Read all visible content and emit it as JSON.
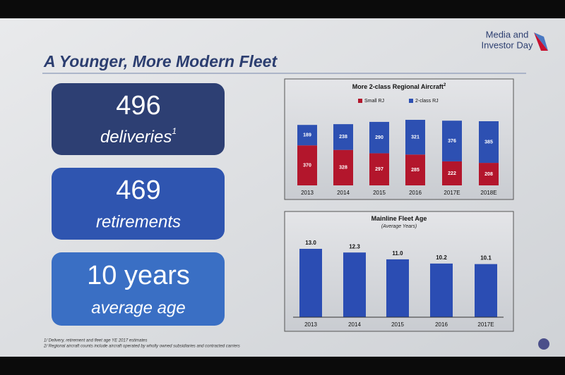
{
  "header": {
    "brand": [
      "Media and",
      "Investor Day"
    ],
    "title": "A Younger, More Modern Fleet"
  },
  "stats": [
    {
      "value": "496",
      "label": "deliveries",
      "note": "1"
    },
    {
      "value": "469",
      "label": "retirements"
    },
    {
      "value": "10 years",
      "label": "average age"
    }
  ],
  "footnotes": [
    "1/ Delivery, retirement and fleet age YE 2017 estimates",
    "2/ Regional aircraft counts include aircraft operated by wholly owned subsidiaries and contracted carriers"
  ],
  "chart_data": [
    {
      "type": "bar",
      "stacked": true,
      "title": "More 2-class Regional Aircraft",
      "title_note": "2",
      "categories": [
        "2013",
        "2014",
        "2015",
        "2016",
        "2017E",
        "2018E"
      ],
      "series": [
        {
          "name": "Small RJ",
          "color": "#b3162c",
          "values": [
            370,
            328,
            297,
            285,
            222,
            208
          ]
        },
        {
          "name": "2-class RJ",
          "color": "#2d50b2",
          "values": [
            189,
            238,
            290,
            321,
            376,
            385
          ]
        }
      ]
    },
    {
      "type": "bar",
      "title": "Mainline Fleet Age",
      "subtitle": "(Average Years)",
      "categories": [
        "2013",
        "2014",
        "2015",
        "2016",
        "2017E"
      ],
      "values": [
        13.0,
        12.3,
        11.0,
        10.2,
        10.1
      ],
      "value_labels": [
        "13.0",
        "12.3",
        "11.0",
        "10.2",
        "10.1"
      ],
      "color": "#2b4db3"
    }
  ]
}
